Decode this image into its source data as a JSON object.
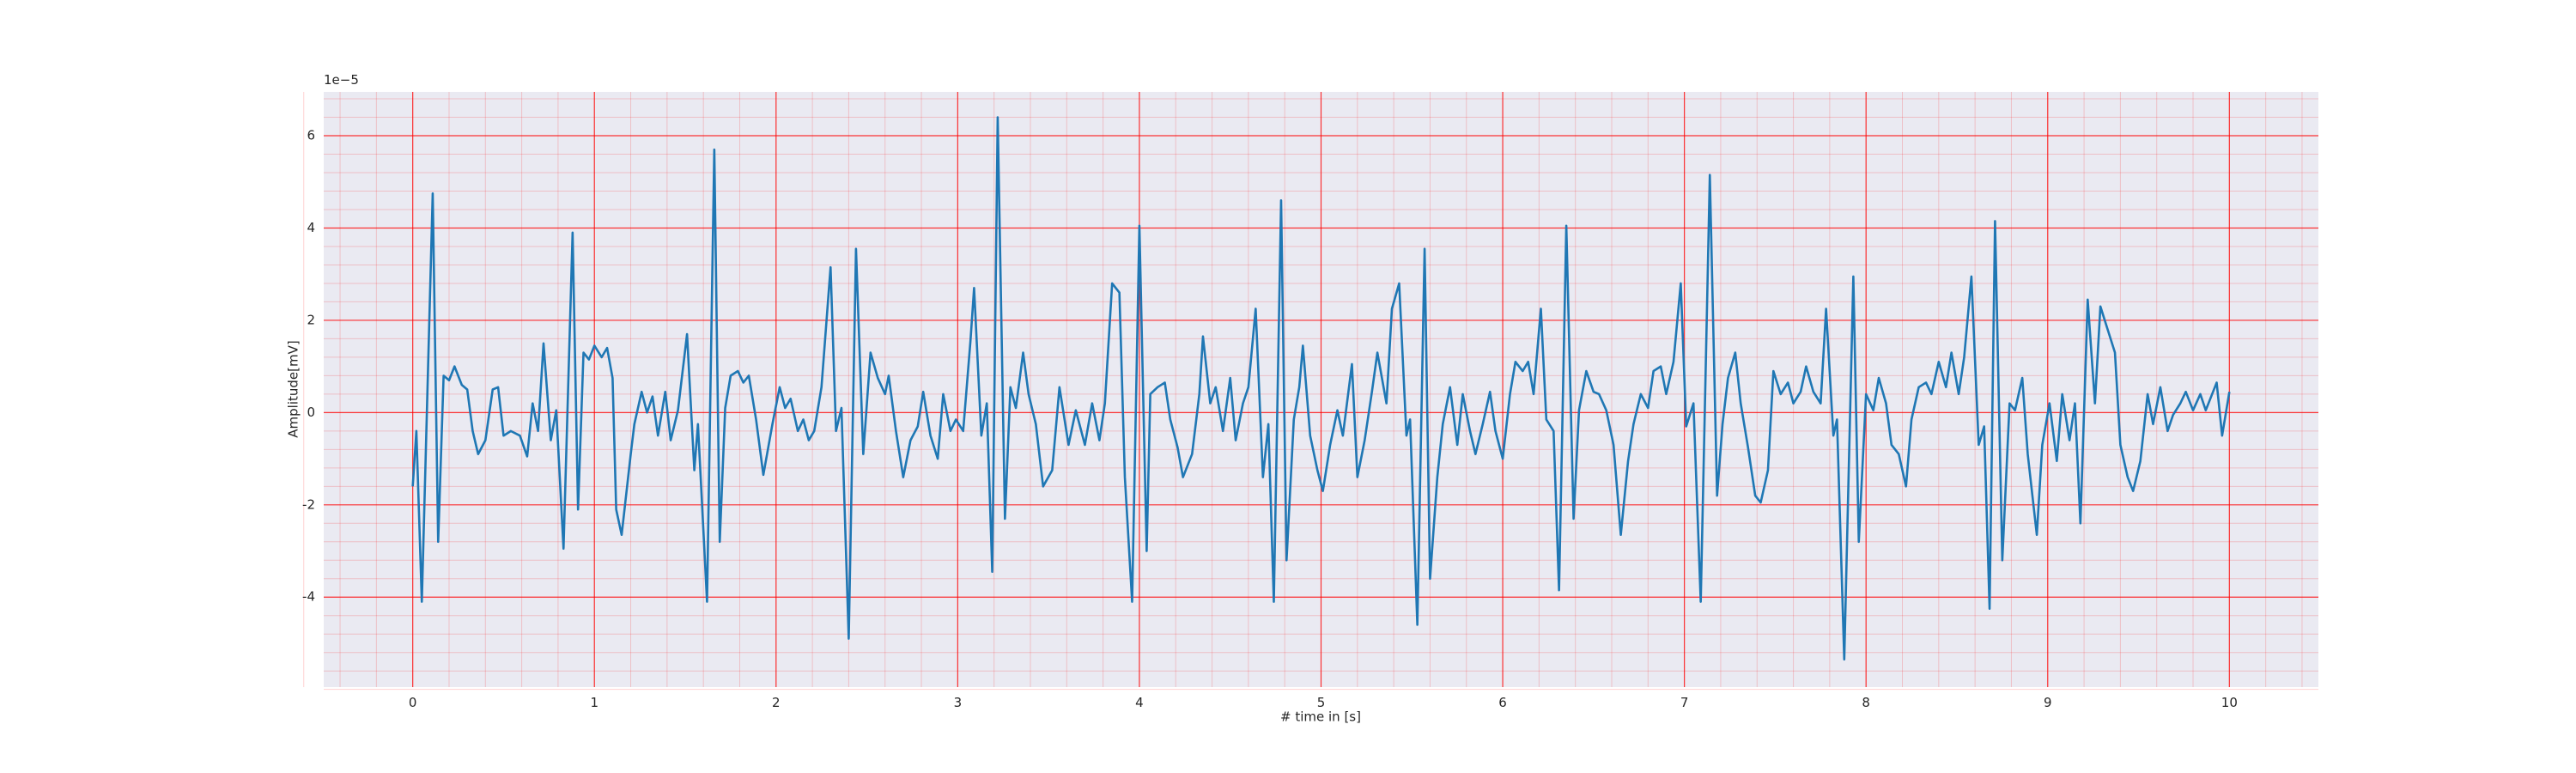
{
  "chart_data": {
    "type": "line",
    "xlabel": "# time in [s]",
    "ylabel": "Amplitude[mV]",
    "y_offset_label": "1e−5",
    "xlim": [
      -0.49,
      10.49
    ],
    "ylim": [
      -5.95,
      6.95
    ],
    "xticks": [
      0,
      1,
      2,
      3,
      4,
      5,
      6,
      7,
      8,
      9,
      10
    ],
    "yticks": [
      -4,
      -2,
      0,
      2,
      4,
      6
    ],
    "grid": true,
    "minor_grid": true,
    "grid_color": "#ff0000",
    "background": "#eaeaf2",
    "color": "#1f77b4",
    "x": [
      0,
      0.02,
      0.05,
      0.11,
      0.14,
      0.17,
      0.2,
      0.23,
      0.27,
      0.3,
      0.33,
      0.36,
      0.4,
      0.44,
      0.47,
      0.5,
      0.54,
      0.59,
      0.63,
      0.66,
      0.69,
      0.72,
      0.76,
      0.79,
      0.83,
      0.88,
      0.91,
      0.94,
      0.97,
      1.0,
      1.04,
      1.07,
      1.1,
      1.12,
      1.15,
      1.2,
      1.22,
      1.26,
      1.29,
      1.32,
      1.35,
      1.39,
      1.42,
      1.46,
      1.51,
      1.55,
      1.57,
      1.62,
      1.66,
      1.69,
      1.72,
      1.75,
      1.79,
      1.82,
      1.85,
      1.89,
      1.93,
      1.98,
      2.02,
      2.05,
      2.08,
      2.12,
      2.15,
      2.18,
      2.21,
      2.25,
      2.3,
      2.33,
      2.36,
      2.4,
      2.44,
      2.48,
      2.52,
      2.56,
      2.6,
      2.62,
      2.66,
      2.7,
      2.74,
      2.78,
      2.81,
      2.85,
      2.89,
      2.92,
      2.96,
      2.99,
      3.03,
      3.07,
      3.09,
      3.13,
      3.16,
      3.19,
      3.22,
      3.26,
      3.29,
      3.32,
      3.36,
      3.39,
      3.43,
      3.47,
      3.52,
      3.56,
      3.61,
      3.65,
      3.7,
      3.74,
      3.78,
      3.81,
      3.85,
      3.89,
      3.92,
      3.96,
      4.0,
      4.04,
      4.06,
      4.1,
      4.14,
      4.17,
      4.21,
      4.24,
      4.29,
      4.33,
      4.35,
      4.39,
      4.42,
      4.46,
      4.5,
      4.53,
      4.57,
      4.6,
      4.64,
      4.68,
      4.71,
      4.74,
      4.78,
      4.81,
      4.85,
      4.88,
      4.9,
      4.94,
      4.98,
      5.01,
      5.05,
      5.09,
      5.12,
      5.17,
      5.2,
      5.24,
      5.28,
      5.31,
      5.36,
      5.39,
      5.43,
      5.47,
      5.49,
      5.53,
      5.57,
      5.6,
      5.64,
      5.67,
      5.71,
      5.75,
      5.78,
      5.82,
      5.85,
      5.89,
      5.93,
      5.96,
      6.0,
      6.04,
      6.07,
      6.11,
      6.14,
      6.17,
      6.21,
      6.24,
      6.28,
      6.31,
      6.35,
      6.39,
      6.42,
      6.46,
      6.5,
      6.53,
      6.57,
      6.61,
      6.65,
      6.69,
      6.72,
      6.76,
      6.8,
      6.83,
      6.87,
      6.9,
      6.94,
      6.98,
      7.01,
      7.05,
      7.09,
      7.14,
      7.18,
      7.21,
      7.24,
      7.28,
      7.31,
      7.35,
      7.39,
      7.42,
      7.46,
      7.49,
      7.53,
      7.57,
      7.6,
      7.64,
      7.67,
      7.71,
      7.75,
      7.78,
      7.82,
      7.84,
      7.88,
      7.93,
      7.96,
      8.0,
      8.04,
      8.07,
      8.11,
      8.14,
      8.18,
      8.22,
      8.25,
      8.29,
      8.33,
      8.36,
      8.4,
      8.44,
      8.47,
      8.51,
      8.54,
      8.58,
      8.62,
      8.65,
      8.68,
      8.71,
      8.75,
      8.79,
      8.82,
      8.86,
      8.89,
      8.94,
      8.97,
      9.01,
      9.05,
      9.08,
      9.12,
      9.15,
      9.18,
      9.22,
      9.26,
      9.29,
      9.33,
      9.37,
      9.4,
      9.44,
      9.47,
      9.51,
      9.55,
      9.58,
      9.62,
      9.66,
      9.69,
      9.73,
      9.76,
      9.8,
      9.84,
      9.87,
      9.93,
      9.96,
      10.0
    ],
    "values": [
      -1.6,
      -0.4,
      -4.1,
      4.75,
      -2.8,
      0.8,
      0.7,
      1.0,
      0.6,
      0.5,
      -0.4,
      -0.9,
      -0.6,
      0.5,
      0.55,
      -0.5,
      -0.4,
      -0.5,
      -0.95,
      0.2,
      -0.4,
      1.5,
      -0.6,
      0.05,
      -2.95,
      3.9,
      -2.1,
      1.3,
      1.15,
      1.45,
      1.2,
      1.4,
      0.75,
      -2.1,
      -2.65,
      -0.9,
      -0.25,
      0.45,
      0.0,
      0.35,
      -0.5,
      0.45,
      -0.6,
      0.05,
      1.7,
      -1.25,
      -0.25,
      -4.1,
      5.7,
      -2.8,
      0.1,
      0.8,
      0.9,
      0.65,
      0.8,
      -0.15,
      -1.35,
      -0.25,
      0.55,
      0.1,
      0.3,
      -0.4,
      -0.15,
      -0.6,
      -0.4,
      0.55,
      3.15,
      -0.4,
      0.1,
      -4.9,
      3.55,
      -0.9,
      1.3,
      0.75,
      0.4,
      0.8,
      -0.4,
      -1.4,
      -0.6,
      -0.3,
      0.45,
      -0.5,
      -1.0,
      0.4,
      -0.4,
      -0.15,
      -0.4,
      1.55,
      2.7,
      -0.5,
      0.2,
      -3.45,
      6.4,
      -2.3,
      0.55,
      0.1,
      1.3,
      0.4,
      -0.25,
      -1.6,
      -1.25,
      0.55,
      -0.7,
      0.05,
      -0.7,
      0.2,
      -0.6,
      0.2,
      2.8,
      2.6,
      -1.4,
      -4.1,
      4.05,
      -3.0,
      0.4,
      0.55,
      0.65,
      -0.15,
      -0.75,
      -1.4,
      -0.9,
      0.4,
      1.65,
      0.2,
      0.55,
      -0.4,
      0.75,
      -0.6,
      0.2,
      0.55,
      2.25,
      -1.4,
      -0.25,
      -4.1,
      4.6,
      -3.2,
      -0.15,
      0.55,
      1.45,
      -0.5,
      -1.25,
      -1.7,
      -0.7,
      0.05,
      -0.5,
      1.05,
      -1.4,
      -0.6,
      0.45,
      1.3,
      0.2,
      2.25,
      2.8,
      -0.5,
      -0.15,
      -4.6,
      3.55,
      -3.6,
      -1.4,
      -0.25,
      0.55,
      -0.7,
      0.4,
      -0.4,
      -0.9,
      -0.25,
      0.45,
      -0.4,
      -1.0,
      0.4,
      1.1,
      0.9,
      1.1,
      0.4,
      2.25,
      -0.15,
      -0.4,
      -3.85,
      4.05,
      -2.3,
      0.05,
      0.9,
      0.45,
      0.4,
      0.05,
      -0.7,
      -2.65,
      -1.05,
      -0.25,
      0.4,
      0.1,
      0.9,
      1.0,
      0.4,
      1.1,
      2.8,
      -0.3,
      0.2,
      -4.1,
      5.15,
      -1.8,
      -0.25,
      0.75,
      1.3,
      0.2,
      -0.75,
      -1.8,
      -1.95,
      -1.25,
      0.9,
      0.4,
      0.65,
      0.2,
      0.45,
      1.0,
      0.45,
      0.2,
      2.25,
      -0.5,
      -0.15,
      -5.35,
      2.95,
      -2.8,
      0.4,
      0.05,
      0.75,
      0.2,
      -0.7,
      -0.9,
      -1.6,
      -0.15,
      0.55,
      0.65,
      0.4,
      1.1,
      0.55,
      1.3,
      0.4,
      1.2,
      2.95,
      -0.7,
      -0.3,
      -4.25,
      4.15,
      -3.2,
      0.2,
      0.05,
      0.75,
      -0.9,
      -2.65,
      -0.7,
      0.2,
      -1.05,
      0.4,
      -0.6,
      0.2,
      -2.4,
      2.45,
      0.2,
      2.3,
      1.8,
      1.3,
      -0.7,
      -1.4,
      -1.7,
      -1.05,
      0.4,
      -0.25,
      0.55,
      -0.4,
      -0.05,
      0.2,
      0.45,
      0.05,
      0.4,
      0.05,
      0.65,
      -0.5,
      0.45
    ]
  }
}
